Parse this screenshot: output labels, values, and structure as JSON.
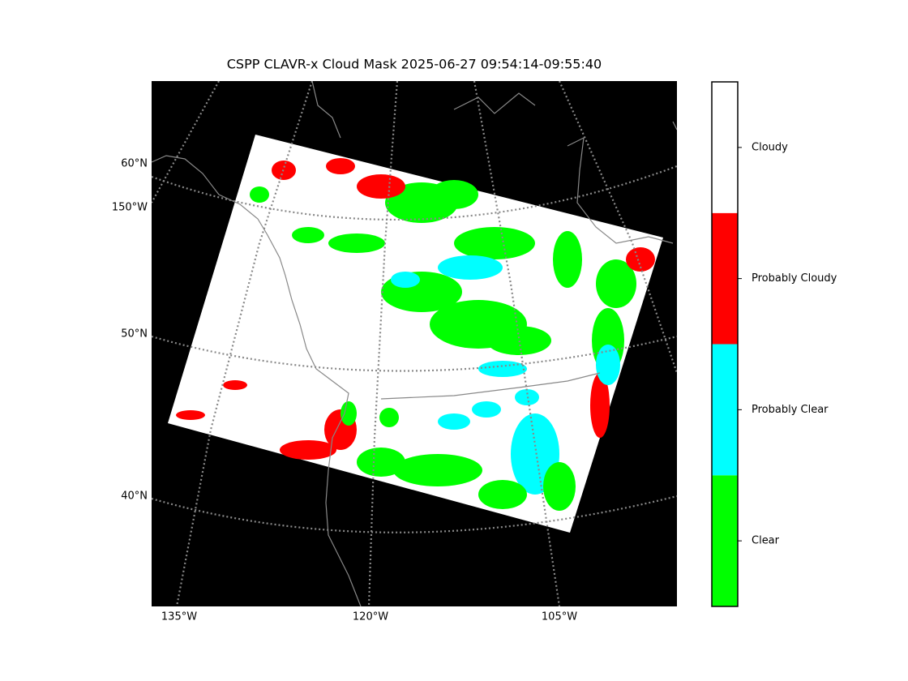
{
  "title": "CSPP CLAVR-x Cloud Mask 2025-06-27 09:54:14-09:55:40",
  "map": {
    "background": "#000000",
    "swath_color": "#ffffff",
    "lat_labels": [
      "60°N",
      "50°N",
      "40°N"
    ],
    "lon_label_left": "150°W",
    "lon_labels_bottom": [
      "135°W",
      "120°W",
      "105°W"
    ]
  },
  "colorbar": {
    "classes": [
      {
        "label": "Clear",
        "color": "#00ff00"
      },
      {
        "label": "Probably Clear",
        "color": "#00ffff"
      },
      {
        "label": "Probably Cloudy",
        "color": "#ff0000"
      },
      {
        "label": "Cloudy",
        "color": "#ffffff"
      }
    ]
  }
}
